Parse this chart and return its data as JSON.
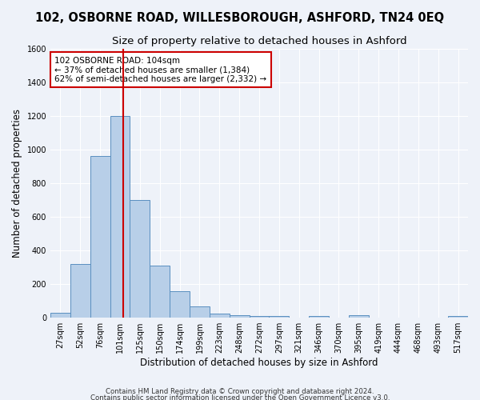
{
  "title": "102, OSBORNE ROAD, WILLESBOROUGH, ASHFORD, TN24 0EQ",
  "subtitle": "Size of property relative to detached houses in Ashford",
  "xlabel": "Distribution of detached houses by size in Ashford",
  "ylabel": "Number of detached properties",
  "footnote1": "Contains HM Land Registry data © Crown copyright and database right 2024.",
  "footnote2": "Contains public sector information licensed under the Open Government Licence v3.0.",
  "categories": [
    "27sqm",
    "52sqm",
    "76sqm",
    "101sqm",
    "125sqm",
    "150sqm",
    "174sqm",
    "199sqm",
    "223sqm",
    "248sqm",
    "272sqm",
    "297sqm",
    "321sqm",
    "346sqm",
    "370sqm",
    "395sqm",
    "419sqm",
    "444sqm",
    "468sqm",
    "493sqm",
    "517sqm"
  ],
  "values": [
    30,
    320,
    960,
    1200,
    700,
    310,
    155,
    65,
    25,
    15,
    10,
    10,
    0,
    10,
    0,
    15,
    0,
    0,
    0,
    0,
    10
  ],
  "bar_color": "#b8cfe8",
  "bar_edge_color": "#5a8fc0",
  "red_line_color": "#cc0000",
  "annotation_text": "102 OSBORNE ROAD: 104sqm\n← 37% of detached houses are smaller (1,384)\n62% of semi-detached houses are larger (2,332) →",
  "annotation_box_color": "#ffffff",
  "annotation_box_edge": "#cc0000",
  "ylim": [
    0,
    1600
  ],
  "yticks": [
    0,
    200,
    400,
    600,
    800,
    1000,
    1200,
    1400,
    1600
  ],
  "background_color": "#eef2f9",
  "grid_color": "#ffffff",
  "title_fontsize": 10.5,
  "subtitle_fontsize": 9.5,
  "axis_label_fontsize": 8.5,
  "tick_fontsize": 7,
  "annotation_fontsize": 7.5
}
